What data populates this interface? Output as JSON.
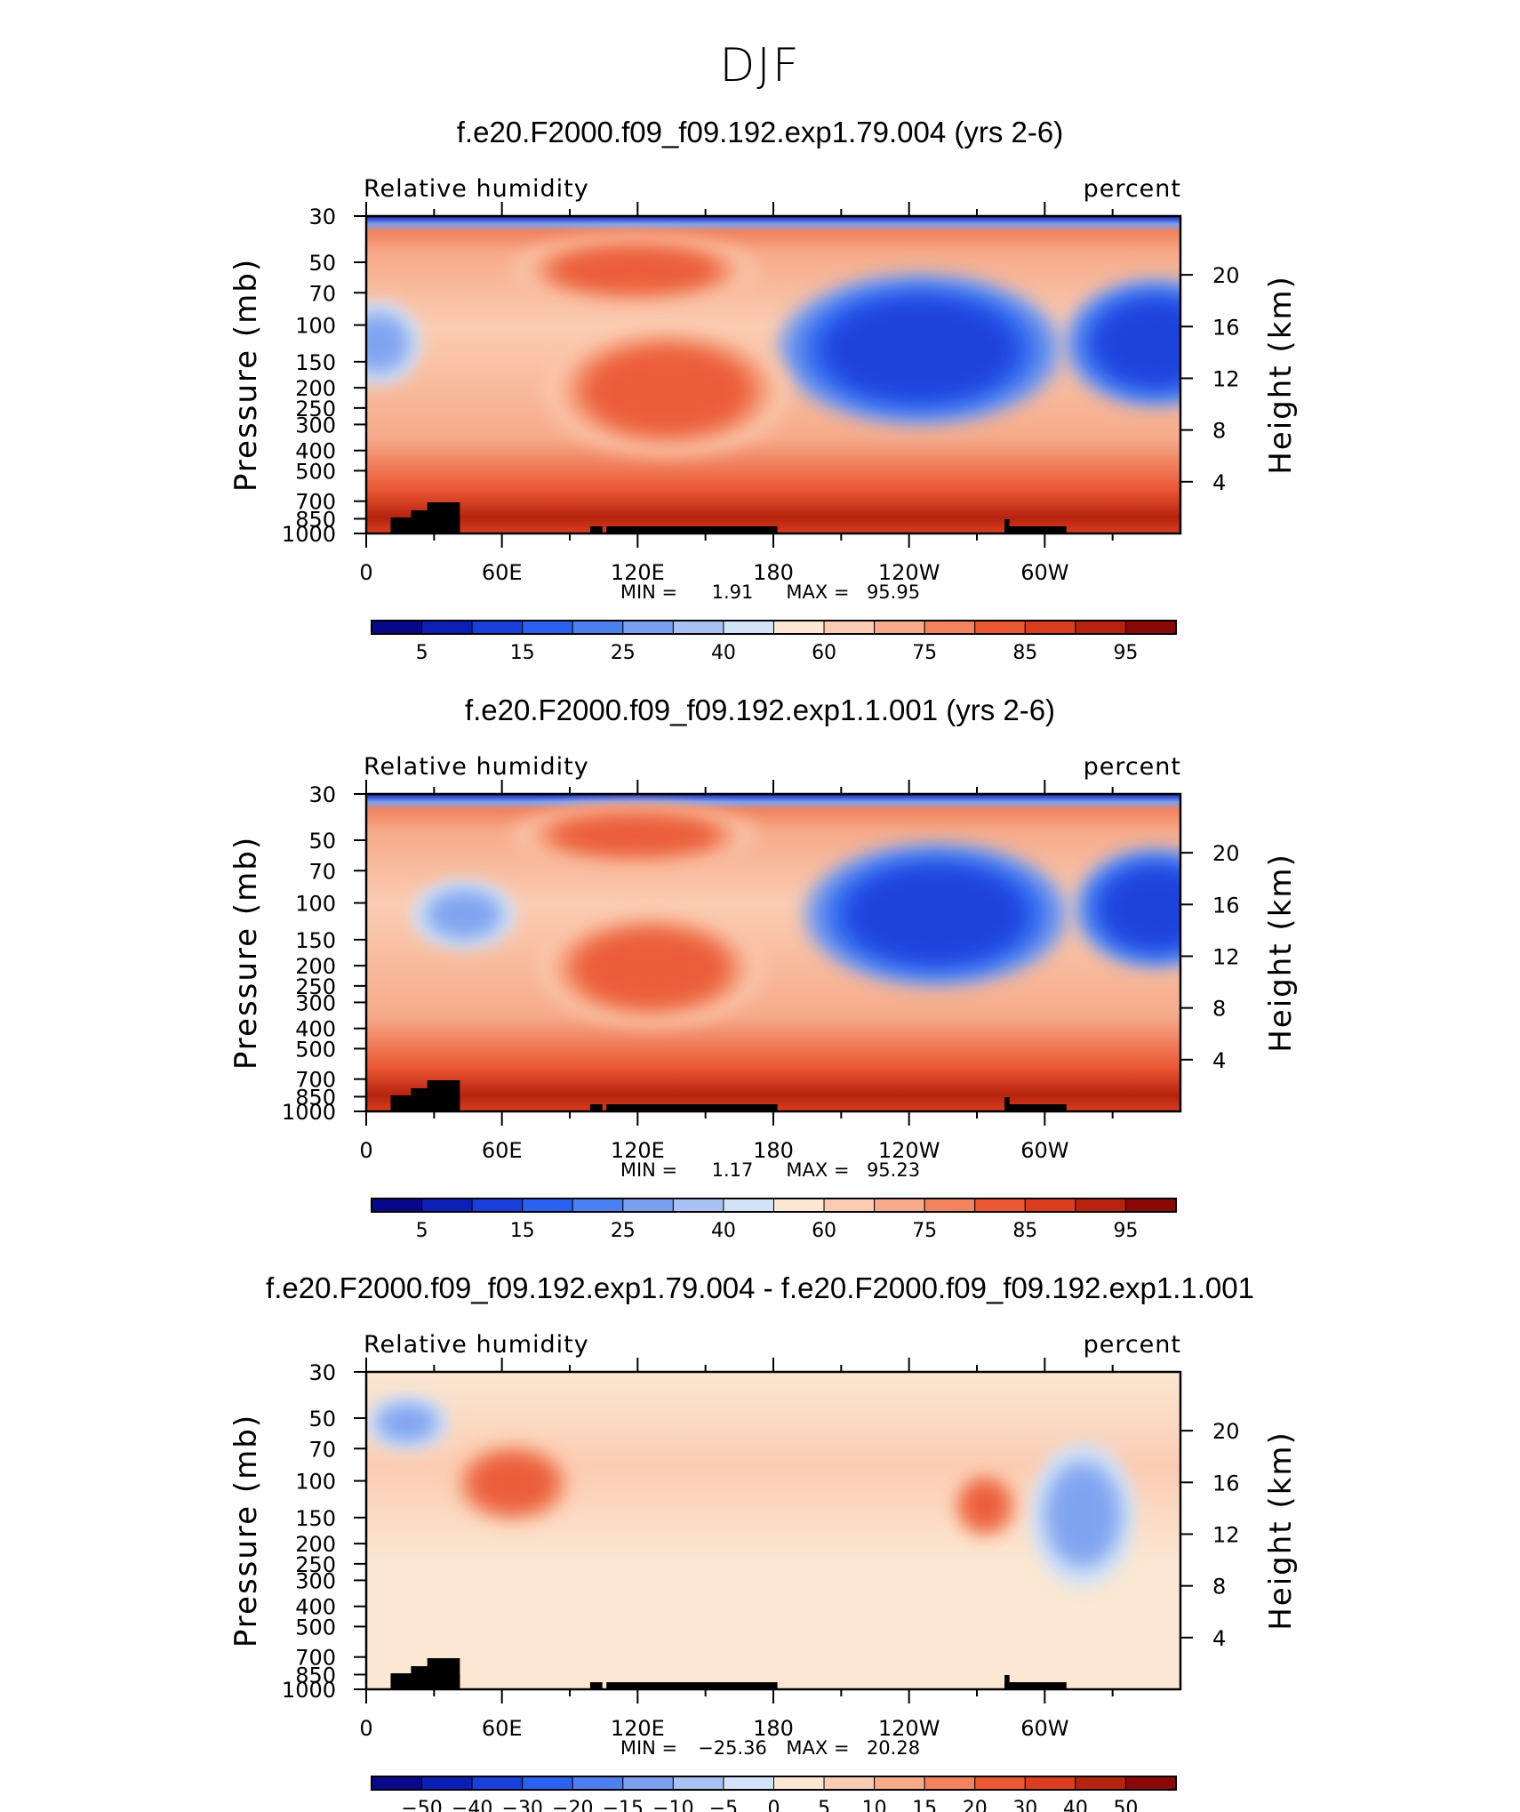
{
  "page_title": "DJF",
  "chart_data": [
    {
      "type": "heatmap",
      "title": "f.e20.F2000.f09_f09.192.exp1.79.004 (yrs 2-6)",
      "left_label": "Relative humidity",
      "right_label": "percent",
      "ylabel": "Pressure (mb)",
      "ylabel_right": "Height (km)",
      "x_ticks": [
        "0",
        "60E",
        "120E",
        "180",
        "120W",
        "60W"
      ],
      "y_ticks": [
        "30",
        "50",
        "70",
        "100",
        "150",
        "200",
        "250",
        "300",
        "400",
        "500",
        "700",
        "850",
        "1000"
      ],
      "y_right_ticks": [
        "20",
        "16",
        "12",
        "8",
        "4"
      ],
      "min_label": "MIN =",
      "min_value": "1.91",
      "max_label": "MAX =",
      "max_value": "95.95",
      "colorbar_labels": [
        "5",
        "15",
        "25",
        "40",
        "60",
        "75",
        "85",
        "95"
      ],
      "colorbar_colors": [
        "#08088a",
        "#0b1fb4",
        "#1a40dc",
        "#2a61ef",
        "#4c7ff0",
        "#7ca0f0",
        "#a8c2f4",
        "#d2e3f8",
        "#fbe7d2",
        "#fbccb2",
        "#f6ab8a",
        "#f2835e",
        "#eb5834",
        "#da3e1f",
        "#b6230f",
        "#8a0806"
      ],
      "features": [
        {
          "kind": "band",
          "x": 0,
          "y": 1,
          "rx": 0,
          "ry": 0,
          "level": "low"
        },
        {
          "kind": "blob",
          "x": 0.68,
          "y": 0.42,
          "rx": 0.14,
          "ry": 0.19,
          "level": "very_low"
        },
        {
          "kind": "blob",
          "x": 0.97,
          "y": 0.4,
          "rx": 0.09,
          "ry": 0.16,
          "level": "very_low"
        },
        {
          "kind": "blob",
          "x": 0.015,
          "y": 0.4,
          "rx": 0.04,
          "ry": 0.1,
          "level": "low"
        },
        {
          "kind": "blob",
          "x": 0.37,
          "y": 0.55,
          "rx": 0.12,
          "ry": 0.16,
          "level": "high"
        },
        {
          "kind": "blob",
          "x": 0.33,
          "y": 0.17,
          "rx": 0.12,
          "ry": 0.08,
          "level": "high"
        },
        {
          "kind": "band",
          "x": 0,
          "y": 0.9,
          "rx": 0,
          "ry": 0,
          "level": "very_high"
        }
      ]
    },
    {
      "type": "heatmap",
      "title": "f.e20.F2000.f09_f09.192.exp1.1.001 (yrs 2-6)",
      "left_label": "Relative humidity",
      "right_label": "percent",
      "ylabel": "Pressure (mb)",
      "ylabel_right": "Height (km)",
      "x_ticks": [
        "0",
        "60E",
        "120E",
        "180",
        "120W",
        "60W"
      ],
      "y_ticks": [
        "30",
        "50",
        "70",
        "100",
        "150",
        "200",
        "250",
        "300",
        "400",
        "500",
        "700",
        "850",
        "1000"
      ],
      "y_right_ticks": [
        "20",
        "16",
        "12",
        "8",
        "4"
      ],
      "min_label": "MIN =",
      "min_value": "1.17",
      "max_label": "MAX =",
      "max_value": "95.23",
      "colorbar_labels": [
        "5",
        "15",
        "25",
        "40",
        "60",
        "75",
        "85",
        "95"
      ],
      "colorbar_colors": [
        "#08088a",
        "#0b1fb4",
        "#1a40dc",
        "#2a61ef",
        "#4c7ff0",
        "#7ca0f0",
        "#a8c2f4",
        "#d2e3f8",
        "#fbe7d2",
        "#fbccb2",
        "#f6ab8a",
        "#f2835e",
        "#eb5834",
        "#da3e1f",
        "#b6230f",
        "#8a0806"
      ],
      "features": [
        {
          "kind": "band",
          "x": 0,
          "y": 1,
          "rx": 0,
          "ry": 0,
          "level": "low"
        },
        {
          "kind": "blob",
          "x": 0.7,
          "y": 0.38,
          "rx": 0.13,
          "ry": 0.18,
          "level": "very_low"
        },
        {
          "kind": "blob",
          "x": 0.97,
          "y": 0.36,
          "rx": 0.08,
          "ry": 0.15,
          "level": "very_low"
        },
        {
          "kind": "blob",
          "x": 0.12,
          "y": 0.38,
          "rx": 0.05,
          "ry": 0.08,
          "level": "low"
        },
        {
          "kind": "blob",
          "x": 0.35,
          "y": 0.55,
          "rx": 0.11,
          "ry": 0.14,
          "level": "high"
        },
        {
          "kind": "blob",
          "x": 0.33,
          "y": 0.13,
          "rx": 0.12,
          "ry": 0.07,
          "level": "high"
        },
        {
          "kind": "band",
          "x": 0,
          "y": 0.9,
          "rx": 0,
          "ry": 0,
          "level": "very_high"
        }
      ]
    },
    {
      "type": "heatmap",
      "title": "f.e20.F2000.f09_f09.192.exp1.79.004 - f.e20.F2000.f09_f09.192.exp1.1.001",
      "left_label": "Relative humidity",
      "right_label": "percent",
      "ylabel": "Pressure (mb)",
      "ylabel_right": "Height (km)",
      "x_ticks": [
        "0",
        "60E",
        "120E",
        "180",
        "120W",
        "60W"
      ],
      "y_ticks": [
        "30",
        "50",
        "70",
        "100",
        "150",
        "200",
        "250",
        "300",
        "400",
        "500",
        "700",
        "850",
        "1000"
      ],
      "y_right_ticks": [
        "20",
        "16",
        "12",
        "8",
        "4"
      ],
      "min_label": "MIN =",
      "min_value": "−25.36",
      "max_label": "MAX =",
      "max_value": "20.28",
      "colorbar_labels": [
        "−50",
        "−40",
        "−30",
        "−20",
        "−15",
        "−10",
        "−5",
        "0",
        "5",
        "10",
        "15",
        "20",
        "30",
        "40",
        "50"
      ],
      "colorbar_colors": [
        "#08088a",
        "#0b1fb4",
        "#1a40dc",
        "#2a61ef",
        "#4c7ff0",
        "#7ca0f0",
        "#a8c2f4",
        "#d2e3f8",
        "#fbe7d2",
        "#fbccb2",
        "#f6ab8a",
        "#f2835e",
        "#eb5834",
        "#da3e1f",
        "#b6230f",
        "#8a0806"
      ],
      "features": [
        {
          "kind": "blob",
          "x": 0.05,
          "y": 0.16,
          "rx": 0.04,
          "ry": 0.06,
          "level": "low"
        },
        {
          "kind": "blob",
          "x": 0.88,
          "y": 0.45,
          "rx": 0.05,
          "ry": 0.18,
          "level": "low"
        },
        {
          "kind": "blob",
          "x": 0.18,
          "y": 0.35,
          "rx": 0.06,
          "ry": 0.1,
          "level": "high"
        },
        {
          "kind": "blob",
          "x": 0.76,
          "y": 0.42,
          "rx": 0.03,
          "ry": 0.08,
          "level": "high"
        }
      ]
    }
  ]
}
